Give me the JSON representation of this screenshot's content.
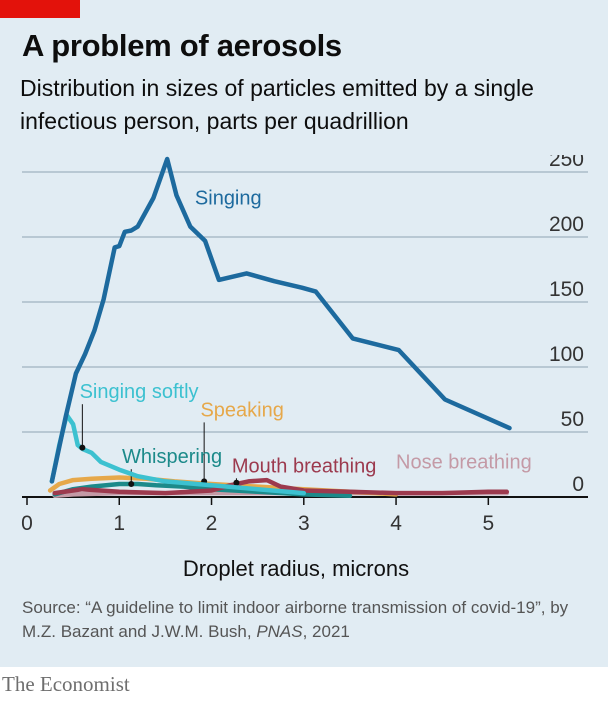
{
  "header": {
    "title": "A problem of aerosols",
    "subtitle": "Distribution in sizes of particles emitted by a single infectious person, parts per quadrillion"
  },
  "footer": {
    "source_text": "Source: “A guideline to limit indoor airborne transmission of covid-19”, by M.Z. Bazant and J.W.M. Bush, ",
    "source_publication": "PNAS",
    "source_year": ", 2021",
    "brand": "The Economist"
  },
  "colors": {
    "background": "#e1ecf3",
    "brand_red": "#e3120b",
    "gridline": "#8fa4b3",
    "axis": "#111111"
  },
  "chart_data": {
    "type": "line",
    "xlabel": "Droplet radius, microns",
    "ylabel": "",
    "xlim": [
      0,
      5.3
    ],
    "ylim": [
      0,
      250
    ],
    "x_ticks": [
      0,
      1,
      2,
      3,
      4,
      5
    ],
    "y_ticks": [
      0,
      50,
      100,
      150,
      200,
      250
    ],
    "y_axis_side": "right",
    "grid": "horizontal",
    "series": [
      {
        "name": "Nose breathing",
        "color": "#c49aa6",
        "label_x": 4.0,
        "label_y": 22,
        "label_anchor": "start",
        "x": [
          0.3,
          0.5,
          1.0,
          1.5,
          2.0,
          2.5,
          3.0,
          3.5,
          4.0,
          4.5,
          5.0,
          5.2
        ],
        "y": [
          1,
          2,
          3,
          3,
          3,
          3,
          3,
          3,
          3,
          3,
          3,
          3
        ]
      },
      {
        "name": "Speaking",
        "color": "#e6a84a",
        "label_x": 1.88,
        "label_y": 62,
        "label_anchor": "start",
        "marker_x": 1.92,
        "marker_y": 12,
        "x": [
          0.25,
          0.35,
          0.5,
          0.7,
          1.0,
          1.3,
          1.6,
          2.0,
          2.5,
          3.0,
          3.5,
          4.0
        ],
        "y": [
          5,
          10,
          13,
          14,
          15,
          14,
          12,
          10,
          8,
          6,
          4,
          2
        ]
      },
      {
        "name": "Whispering",
        "color": "#1c8a8a",
        "label_x": 1.03,
        "label_y": 26,
        "label_anchor": "start",
        "marker_x": 1.13,
        "marker_y": 10,
        "x": [
          0.3,
          0.5,
          0.7,
          1.0,
          1.2,
          1.4,
          1.7,
          2.0,
          2.5,
          3.0,
          3.5
        ],
        "y": [
          2,
          6,
          8,
          10,
          10,
          9,
          8,
          6,
          4,
          2,
          1
        ]
      },
      {
        "name": "Mouth breathing",
        "color": "#9c3a4e",
        "label_x": 2.22,
        "label_y": 19,
        "label_anchor": "start",
        "marker_x": 2.27,
        "marker_y": 11,
        "x": [
          0.3,
          0.6,
          1.0,
          1.5,
          2.0,
          2.2,
          2.4,
          2.6,
          2.75,
          3.0,
          3.5,
          4.0,
          4.5,
          5.0,
          5.2
        ],
        "y": [
          3,
          6,
          4,
          3,
          5,
          9,
          12,
          13,
          8,
          5,
          4,
          3,
          3,
          4,
          4
        ]
      },
      {
        "name": "Singing softly",
        "color": "#3cc1d0",
        "label_x": 0.57,
        "label_y": 76,
        "label_anchor": "start",
        "marker_x": 0.6,
        "marker_y": 38,
        "x": [
          0.27,
          0.35,
          0.43,
          0.5,
          0.55,
          0.6,
          0.7,
          0.8,
          1.0,
          1.2,
          1.5,
          2.0,
          2.5,
          3.0
        ],
        "y": [
          12,
          40,
          63,
          56,
          40,
          37,
          34,
          27,
          21,
          16,
          12,
          9,
          6,
          3
        ]
      },
      {
        "name": "Singing",
        "color": "#1d6a9e",
        "label_x": 1.82,
        "label_y": 225,
        "label_anchor": "start",
        "x": [
          0.27,
          0.42,
          0.53,
          0.63,
          0.73,
          0.83,
          0.95,
          1.0,
          1.06,
          1.13,
          1.2,
          1.37,
          1.52,
          1.62,
          1.77,
          1.93,
          2.08,
          2.38,
          2.68,
          2.98,
          3.13,
          3.53,
          4.03,
          4.53,
          5.23
        ],
        "y": [
          12,
          62,
          95,
          110,
          128,
          152,
          192,
          193,
          204,
          205,
          208,
          230,
          260,
          232,
          208,
          197,
          167,
          172,
          166,
          161,
          158,
          122,
          113,
          75,
          53
        ]
      }
    ]
  }
}
